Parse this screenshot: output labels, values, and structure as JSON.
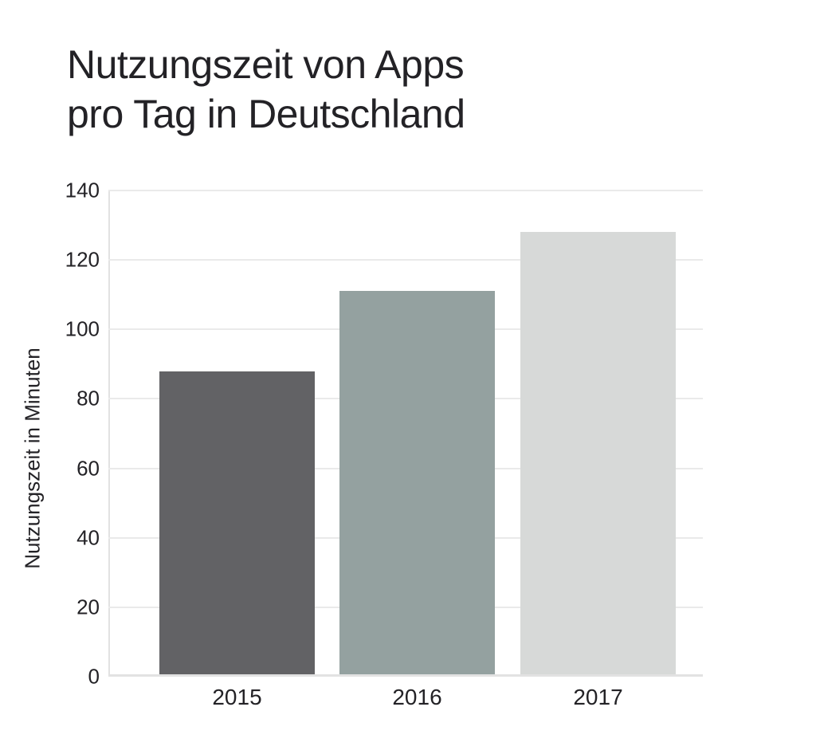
{
  "title_lines": [
    "Nutzungszeit von Apps",
    "pro Tag in Deutschland"
  ],
  "chart_data": {
    "type": "bar",
    "title": "Nutzungszeit von Apps pro Tag in Deutschland",
    "categories": [
      "2015",
      "2016",
      "2017"
    ],
    "values": [
      88,
      111,
      128
    ],
    "xlabel": "",
    "ylabel": "Nutzungszeit in Minuten",
    "ylim": [
      0,
      140
    ],
    "ytick_step": 20,
    "yticks": [
      0,
      20,
      40,
      60,
      80,
      100,
      120,
      140
    ],
    "grid": true,
    "legend": false,
    "bar_colors": [
      "#626265",
      "#94a1a0",
      "#d7d9d8"
    ],
    "colors": {
      "text": "#232226",
      "gridline": "#eaeaea",
      "axis_line": "#e2e2e2",
      "background": "#ffffff"
    }
  }
}
